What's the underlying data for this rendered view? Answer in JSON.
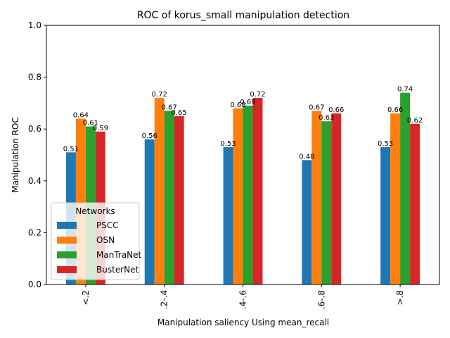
{
  "chart_data": {
    "type": "bar",
    "title": "ROC of korus_small manipulation detection",
    "xlabel": "Manipulation saliency Using mean_recall",
    "ylabel": "Manipulation ROC",
    "categories": [
      "<.2",
      ".2-.4",
      ".4-.6",
      ".6-.8",
      ">.8"
    ],
    "ylim": [
      0,
      1.0
    ],
    "yticks": [
      "0.0",
      "0.2",
      "0.4",
      "0.6",
      "0.8",
      "1.0"
    ],
    "grid": false,
    "legend": {
      "title": "Networks",
      "placement": "lower-left"
    },
    "series": [
      {
        "name": "PSCC",
        "color": "#1f77b4",
        "values": [
          0.51,
          0.56,
          0.53,
          0.48,
          0.53
        ]
      },
      {
        "name": "OSN",
        "color": "#ff7f0e",
        "values": [
          0.64,
          0.72,
          0.68,
          0.67,
          0.66
        ]
      },
      {
        "name": "ManTraNet",
        "color": "#2ca02c",
        "values": [
          0.61,
          0.67,
          0.69,
          0.63,
          0.74
        ]
      },
      {
        "name": "BusterNet",
        "color": "#d62728",
        "values": [
          0.59,
          0.65,
          0.72,
          0.66,
          0.62
        ]
      }
    ]
  }
}
